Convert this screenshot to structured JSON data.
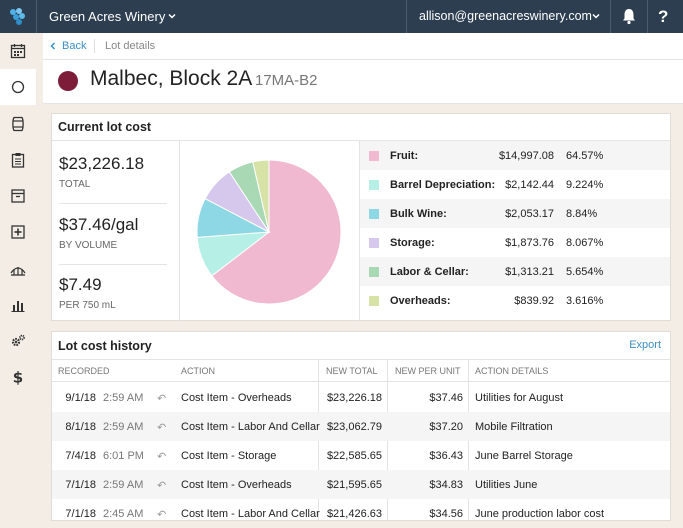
{
  "colors": {
    "topbar": "#2c3e50",
    "accent": "#3b8fc4",
    "wine_dot": "#7d1d3a",
    "fruit": "#f0b9cf",
    "barrel_depreciation": "#b6efe6",
    "bulk_wine": "#8ed8e6",
    "storage": "#d6c7ec",
    "labor_cellar": "#a8d8b4",
    "overheads": "#d6e2a6"
  },
  "header": {
    "winery": "Green Acres Winery",
    "email": "allison@greenacreswinery.com",
    "help": "?",
    "icons": [
      "logo-icon",
      "chevron-down-icon",
      "bell-icon"
    ]
  },
  "sidebar": {
    "icons": [
      "calendar-icon",
      "circle-icon",
      "barrel-icon",
      "clipboard-icon",
      "archive-icon",
      "plus-square-icon",
      "vineyard-icon",
      "bar-chart-icon",
      "gears-icon",
      "dollar-icon"
    ],
    "active": "circle-icon"
  },
  "breadcrumb": {
    "back": "Back",
    "current": "Lot details"
  },
  "lot": {
    "name": "Malbec, Block 2A",
    "code": "17MA-B2"
  },
  "current_cost": {
    "title": "Current lot cost",
    "total": {
      "value": "$23,226.18",
      "label": "TOTAL"
    },
    "per_volume": {
      "value": "$37.46/gal",
      "label": "BY VOLUME"
    },
    "per_bottle": {
      "value": "$7.49",
      "label": "PER 750 mL"
    },
    "breakdown": [
      {
        "name": "Fruit:",
        "amount": "$14,997.08",
        "percent": "64.57%",
        "value": 64.57,
        "color": "#f0b9cf"
      },
      {
        "name": "Barrel Depreciation:",
        "amount": "$2,142.44",
        "percent": "9.224%",
        "value": 9.224,
        "color": "#b6efe6"
      },
      {
        "name": "Bulk Wine:",
        "amount": "$2,053.17",
        "percent": "8.84%",
        "value": 8.84,
        "color": "#8ed8e6"
      },
      {
        "name": "Storage:",
        "amount": "$1,873.76",
        "percent": "8.067%",
        "value": 8.067,
        "color": "#d6c7ec"
      },
      {
        "name": "Labor & Cellar:",
        "amount": "$1,313.21",
        "percent": "5.654%",
        "value": 5.654,
        "color": "#a8d8b4"
      },
      {
        "name": "Overheads:",
        "amount": "$839.92",
        "percent": "3.616%",
        "value": 3.616,
        "color": "#d6e2a6"
      }
    ]
  },
  "history": {
    "title": "Lot cost history",
    "export": "Export",
    "columns": [
      "RECORDED",
      "ACTION",
      "NEW TOTAL",
      "NEW PER UNIT",
      "ACTION DETAILS"
    ],
    "rows": [
      {
        "date": "9/1/18",
        "time": "2:59 AM",
        "action": "Cost Item - Overheads",
        "total": "$23,226.18",
        "per_unit": "$37.46",
        "details": "Utilities for August"
      },
      {
        "date": "8/1/18",
        "time": "2:59 AM",
        "action": "Cost Item - Labor And Cellar",
        "total": "$23,062.79",
        "per_unit": "$37.20",
        "details": "Mobile Filtration"
      },
      {
        "date": "7/4/18",
        "time": "6:01 PM",
        "action": "Cost Item - Storage",
        "total": "$22,585.65",
        "per_unit": "$36.43",
        "details": "June Barrel Storage"
      },
      {
        "date": "7/1/18",
        "time": "2:59 AM",
        "action": "Cost Item - Overheads",
        "total": "$21,595.65",
        "per_unit": "$34.83",
        "details": "Utilities June"
      },
      {
        "date": "7/1/18",
        "time": "2:45 AM",
        "action": "Cost Item - Labor And Cellar",
        "total": "$21,426.63",
        "per_unit": "$34.56",
        "details": "June production labor cost"
      }
    ]
  }
}
